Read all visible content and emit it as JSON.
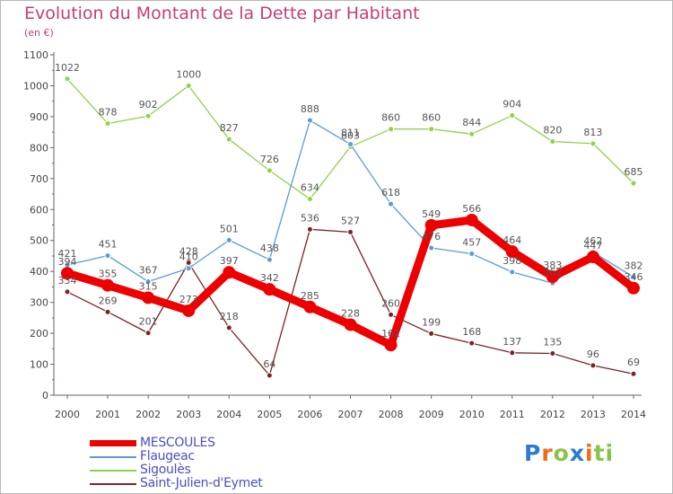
{
  "title": "Evolution du Montant de la Dette par Habitant",
  "subtitle": "(en €)",
  "logo": {
    "text": "Proxiti",
    "letters": [
      {
        "ch": "P",
        "color": "#2b7bd0"
      },
      {
        "ch": "r",
        "color": "#ef6c1a"
      },
      {
        "ch": "o",
        "color": "#8bc34a"
      },
      {
        "ch": "x",
        "color": "#2b7bd0"
      },
      {
        "ch": "i",
        "color": "#ef6c1a"
      },
      {
        "ch": "t",
        "color": "#8bc34a"
      },
      {
        "ch": "i",
        "color": "#8bc34a"
      }
    ]
  },
  "chart_data": {
    "type": "line",
    "title": "Evolution du Montant de la Dette par Habitant",
    "subtitle": "(en €)",
    "xlabel": "",
    "ylabel": "",
    "x": [
      "2000",
      "2001",
      "2002",
      "2003",
      "2004",
      "2005",
      "2006",
      "2007",
      "2008",
      "2009",
      "2010",
      "2011",
      "2012",
      "2013",
      "2014"
    ],
    "ylim": [
      0,
      1100
    ],
    "yticks": [
      0,
      100,
      200,
      300,
      400,
      500,
      600,
      700,
      800,
      900,
      1000,
      1100
    ],
    "grid": false,
    "legend_position": "bottom-left",
    "series": [
      {
        "name": "MESCOULES",
        "color": "#ee0000",
        "values": [
          394,
          355,
          315,
          273,
          397,
          342,
          285,
          228,
          162,
          549,
          566,
          464,
          383,
          447,
          346
        ]
      },
      {
        "name": "Flaugeac",
        "color": "#5a9bd4",
        "values": [
          421,
          451,
          367,
          410,
          501,
          438,
          888,
          811,
          618,
          476,
          457,
          398,
          362,
          462,
          382
        ]
      },
      {
        "name": "Sigoulès",
        "color": "#8fd24a",
        "values": [
          1022,
          878,
          902,
          1000,
          827,
          726,
          634,
          803,
          860,
          860,
          844,
          904,
          820,
          813,
          685
        ]
      },
      {
        "name": "Saint-Julien-d'Eymet",
        "color": "#7a2424",
        "values": [
          334,
          269,
          201,
          428,
          218,
          64,
          536,
          527,
          260,
          199,
          168,
          137,
          135,
          96,
          69
        ]
      }
    ]
  }
}
